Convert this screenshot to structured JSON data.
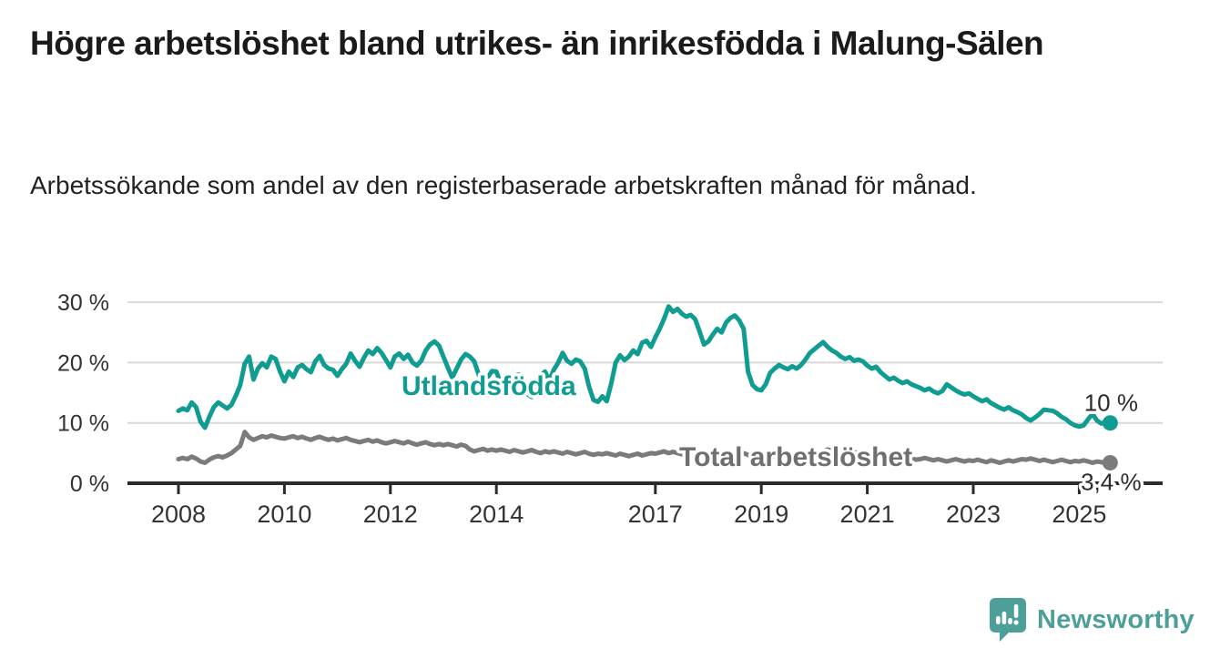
{
  "title": "Högre arbetslöshet bland utrikes- än inrikesfödda i Malung-Sälen",
  "subtitle": "Arbetssökande som andel av den registerbaserade arbetskraften månad för månad.",
  "branding": {
    "logo_text": "Newsworthy",
    "logo_icon": "speech-bubble-bar-chart-icon",
    "logo_color": "#4d9f99"
  },
  "colors": {
    "foreign_born_line": "#119c92",
    "total_line": "#7b7b7b",
    "total_label": "#6f6f6f",
    "axis": "#2b2b2b",
    "grid": "#d8d8d8",
    "tick_text": "#333333",
    "end_label_text": "#2b2b2b",
    "background": "#ffffff"
  },
  "chart_data": {
    "type": "line",
    "title": "Högre arbetslöshet bland utrikes- än inrikesfödda i Malung-Sälen",
    "subtitle": "Arbetssökande som andel av den registerbaserade arbetskraften månad för månad.",
    "xlabel": "",
    "ylabel": "",
    "unit": "%",
    "x_start_year": 2008,
    "x_step_months": 1,
    "x_end_approx": "2025-08",
    "ylim": [
      0,
      32
    ],
    "grid": "horizontal",
    "legend": "inline-labels",
    "yticks": [
      {
        "value": 0,
        "label": "0 %"
      },
      {
        "value": 10,
        "label": "10 %"
      },
      {
        "value": 20,
        "label": "20 %"
      },
      {
        "value": 30,
        "label": "30 %"
      }
    ],
    "xticks": [
      {
        "year": 2008,
        "label": "2008"
      },
      {
        "year": 2010,
        "label": "2010"
      },
      {
        "year": 2012,
        "label": "2012"
      },
      {
        "year": 2014,
        "label": "2014"
      },
      {
        "year": 2017,
        "label": "2017"
      },
      {
        "year": 2019,
        "label": "2019"
      },
      {
        "year": 2021,
        "label": "2021"
      },
      {
        "year": 2023,
        "label": "2023"
      },
      {
        "year": 2025,
        "label": "2025"
      }
    ],
    "series": [
      {
        "name": "Utlandsfödda",
        "color": "#119c92",
        "end_label": "10 %",
        "end_value": 10,
        "values": [
          12.0,
          12.4,
          12.1,
          13.4,
          12.6,
          10.2,
          9.2,
          11.0,
          12.6,
          13.4,
          12.9,
          12.4,
          13.0,
          14.5,
          16.3,
          19.8,
          21.0,
          17.2,
          19.0,
          19.9,
          19.2,
          21.0,
          20.6,
          18.5,
          16.9,
          18.5,
          17.6,
          19.2,
          19.6,
          18.9,
          18.4,
          20.2,
          21.1,
          19.6,
          19.0,
          18.8,
          17.8,
          18.9,
          19.8,
          21.5,
          20.3,
          19.3,
          20.8,
          22.0,
          21.4,
          22.4,
          21.6,
          20.4,
          19.2,
          21.0,
          21.5,
          20.6,
          21.3,
          20.0,
          19.5,
          20.3,
          22.0,
          23.0,
          23.5,
          22.8,
          21.0,
          19.2,
          17.5,
          19.0,
          20.5,
          21.4,
          21.0,
          20.2,
          18.0,
          16.2,
          17.5,
          18.6,
          18.5,
          16.5,
          14.6,
          16.0,
          17.8,
          18.0,
          16.5,
          14.8,
          14.3,
          16.0,
          17.8,
          18.5,
          17.0,
          18.8,
          20.0,
          21.6,
          20.3,
          19.8,
          20.5,
          20.2,
          19.0,
          16.0,
          13.8,
          13.5,
          14.4,
          13.6,
          16.5,
          20.0,
          21.2,
          20.4,
          21.0,
          22.0,
          21.4,
          23.3,
          23.6,
          22.6,
          24.2,
          25.6,
          27.3,
          29.3,
          28.4,
          28.9,
          28.1,
          27.6,
          27.9,
          27.2,
          25.2,
          23.0,
          23.5,
          24.6,
          25.6,
          25.0,
          26.6,
          27.4,
          27.8,
          27.0,
          25.6,
          18.5,
          16.3,
          15.6,
          15.4,
          16.4,
          18.3,
          19.0,
          19.6,
          19.2,
          18.9,
          19.4,
          19.0,
          19.6,
          20.5,
          21.6,
          22.2,
          22.8,
          23.4,
          22.6,
          22.0,
          21.6,
          21.0,
          20.6,
          20.9,
          20.3,
          20.5,
          20.2,
          19.5,
          19.0,
          19.3,
          18.4,
          17.8,
          17.2,
          17.5,
          17.0,
          16.6,
          16.9,
          16.4,
          16.1,
          15.8,
          15.4,
          15.7,
          15.2,
          14.9,
          15.3,
          16.4,
          15.9,
          15.4,
          15.0,
          14.7,
          14.9,
          14.4,
          14.0,
          13.6,
          13.9,
          13.3,
          12.9,
          12.5,
          12.2,
          12.6,
          12.1,
          11.8,
          11.4,
          10.8,
          10.4,
          10.9,
          11.5,
          12.2,
          12.1,
          12.0,
          11.6,
          11.0,
          10.6,
          10.0,
          9.6,
          9.4,
          9.6,
          10.6,
          11.5,
          10.4,
          9.9,
          10.2,
          10.0
        ]
      },
      {
        "name": "Total arbetslöshet",
        "color": "#7b7b7b",
        "end_label": "3,4 %",
        "end_value": 3.4,
        "values": [
          4.0,
          4.2,
          4.0,
          4.4,
          4.1,
          3.6,
          3.4,
          3.9,
          4.3,
          4.5,
          4.3,
          4.6,
          5.0,
          5.6,
          6.2,
          8.5,
          7.6,
          7.2,
          7.5,
          7.8,
          7.6,
          7.9,
          7.7,
          7.5,
          7.4,
          7.6,
          7.8,
          7.5,
          7.7,
          7.4,
          7.2,
          7.5,
          7.7,
          7.4,
          7.2,
          7.4,
          7.1,
          7.3,
          7.5,
          7.2,
          7.0,
          6.8,
          7.0,
          7.2,
          6.9,
          7.1,
          6.8,
          6.6,
          6.8,
          7.0,
          6.8,
          6.6,
          6.9,
          6.6,
          6.4,
          6.6,
          6.8,
          6.5,
          6.3,
          6.5,
          6.3,
          6.5,
          6.3,
          6.1,
          6.4,
          6.2,
          5.6,
          5.3,
          5.5,
          5.7,
          5.4,
          5.6,
          5.4,
          5.6,
          5.4,
          5.2,
          5.5,
          5.3,
          5.1,
          5.3,
          5.5,
          5.2,
          5.0,
          5.3,
          5.1,
          5.3,
          5.1,
          4.9,
          5.2,
          5.0,
          4.8,
          5.0,
          5.2,
          4.9,
          4.7,
          4.9,
          4.8,
          5.0,
          4.8,
          4.6,
          4.9,
          4.7,
          4.5,
          4.7,
          4.9,
          4.6,
          4.8,
          5.0,
          4.9,
          5.1,
          5.3,
          5.0,
          5.2,
          5.0,
          4.8,
          5.0,
          5.2,
          5.0,
          4.8,
          5.0,
          4.9,
          5.1,
          4.9,
          4.7,
          5.0,
          4.8,
          4.6,
          4.8,
          5.0,
          4.7,
          4.5,
          4.7,
          4.6,
          4.8,
          4.6,
          4.4,
          4.7,
          4.9,
          4.7,
          4.5,
          4.8,
          4.6,
          4.4,
          4.6,
          4.7,
          4.9,
          5.3,
          5.6,
          5.4,
          5.2,
          5.4,
          5.2,
          5.0,
          5.2,
          5.0,
          4.8,
          4.9,
          5.1,
          4.9,
          4.7,
          4.5,
          4.3,
          4.5,
          4.3,
          4.1,
          4.3,
          4.1,
          3.9,
          4.0,
          4.2,
          4.0,
          3.8,
          4.0,
          3.8,
          3.6,
          3.8,
          4.0,
          3.8,
          3.6,
          3.8,
          3.7,
          3.9,
          3.7,
          3.5,
          3.8,
          3.6,
          3.4,
          3.6,
          3.8,
          3.6,
          3.8,
          4.0,
          3.9,
          4.1,
          3.9,
          3.7,
          3.9,
          3.7,
          3.5,
          3.7,
          3.9,
          3.7,
          3.5,
          3.7,
          3.6,
          3.8,
          3.6,
          3.4,
          3.6,
          3.5,
          3.3,
          3.4
        ]
      }
    ]
  }
}
